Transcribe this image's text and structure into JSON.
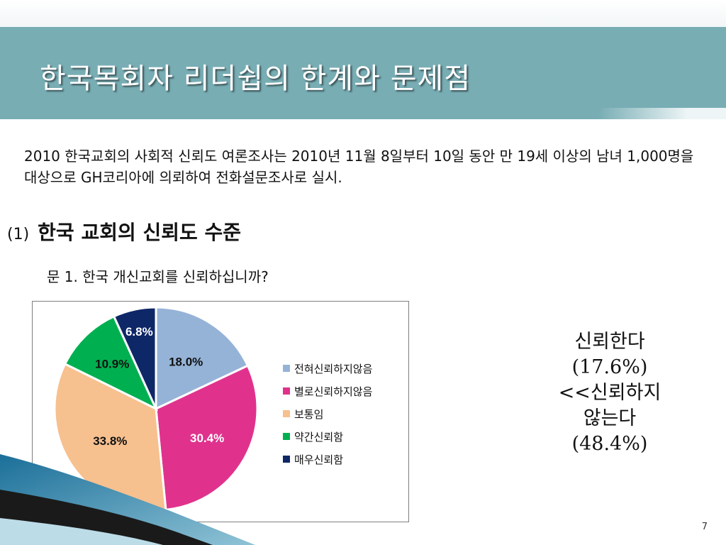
{
  "slide": {
    "title": "한국목회자 리더쉽의 한계와 문제점",
    "intro": "2010 한국교회의 사회적 신뢰도 여론조사는 2010년 11월 8일부터 10일 동안 만 19세 이상의 남녀 1,000명을 대상으로 GH코리아에 의뢰하여 전화설문조사로 실시.",
    "section_number": "(1)",
    "section_title": "한국 교회의 신뢰도 수준",
    "question": "문 1. 한국 개신교회를 신뢰하십니까?",
    "page_number": "7"
  },
  "side_note": {
    "line1": "신뢰한다",
    "line2": "(17.6%)",
    "line3": "<<신뢰하지",
    "line4": "않는다",
    "line5": "(48.4%)"
  },
  "chart_data": {
    "type": "pie",
    "title": "",
    "legend_position": "right",
    "categories": [
      "전혀신뢰하지않음",
      "별로신뢰하지않음",
      "보통임",
      "약간신뢰함",
      "매우신뢰함"
    ],
    "values": [
      18.0,
      30.4,
      33.8,
      10.9,
      6.8
    ],
    "labels": [
      "18.0%",
      "30.4%",
      "33.8%",
      "10.9%",
      "6.8%"
    ],
    "colors": [
      "#95b3d7",
      "#e0328d",
      "#f7c08f",
      "#00b050",
      "#0e2767"
    ],
    "label_colors": [
      "#111111",
      "#ffffff",
      "#111111",
      "#111111",
      "#ffffff"
    ]
  }
}
